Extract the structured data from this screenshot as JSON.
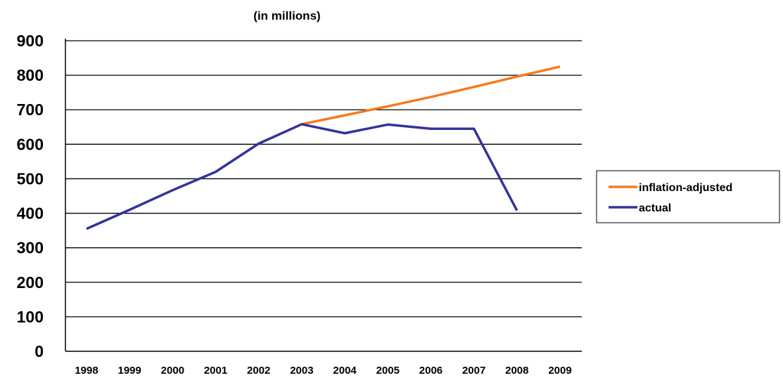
{
  "chart_data": {
    "type": "line",
    "title": "",
    "subtitle": "(in millions)",
    "xlabel": "",
    "ylabel": "",
    "categories": [
      "1998",
      "1999",
      "2000",
      "2001",
      "2002",
      "2003",
      "2004",
      "2005",
      "2006",
      "2007",
      "2008",
      "2009"
    ],
    "y_ticks": [
      "0",
      "100",
      "200",
      "300",
      "400",
      "500",
      "600",
      "700",
      "800",
      "900"
    ],
    "ylim": [
      0,
      900
    ],
    "grid": true,
    "legend_position": "right",
    "series": [
      {
        "name": "inflation-adjusted",
        "color": "#F47A20",
        "values": [
          null,
          null,
          null,
          null,
          null,
          658,
          684,
          710,
          737,
          766,
          796,
          825
        ]
      },
      {
        "name": "actual",
        "color": "#33339A",
        "values": [
          355,
          410,
          467,
          520,
          602,
          658,
          632,
          657,
          645,
          645,
          408,
          null
        ]
      }
    ]
  }
}
